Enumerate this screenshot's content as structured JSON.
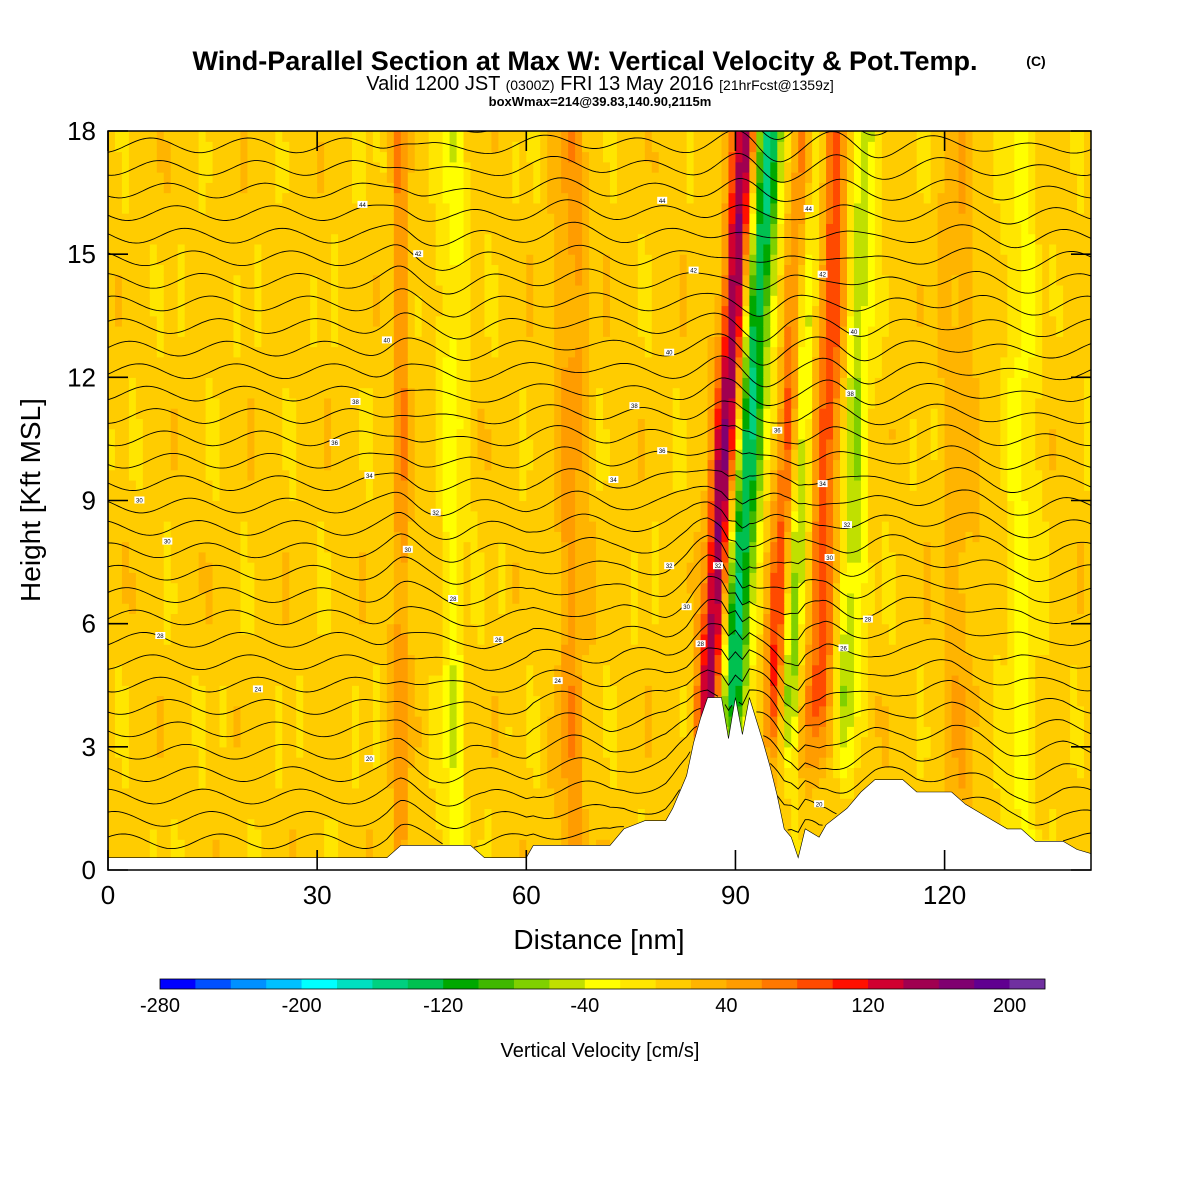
{
  "title": {
    "main": "Wind-Parallel Section at Max W: Vertical Velocity & Pot.Temp.",
    "main_mark": "(C)",
    "valid_prefix": "Valid 1200 JST",
    "valid_z": "(0300Z)",
    "valid_date": "FRI 13 May 2016",
    "valid_fcst": "[21hrFcst@1359z]",
    "box": "boxWmax=214@39.83,140.90,2115m"
  },
  "chart_data": {
    "type": "heatmap",
    "xlabel": "Distance [nm]",
    "ylabel": "Height [Kft MSL]",
    "xlim": [
      0,
      141
    ],
    "ylim": [
      0,
      18
    ],
    "x_ticks": [
      0,
      30,
      60,
      90,
      120
    ],
    "y_ticks": [
      0,
      3,
      6,
      9,
      12,
      15,
      18
    ],
    "x_tick_labels": [
      "0",
      "30",
      "60",
      "90",
      "120"
    ],
    "y_tick_labels": [
      "0",
      "3",
      "6",
      "9",
      "12",
      "15",
      "18"
    ],
    "colorbar": {
      "label": "Vertical Velocity [cm/s]",
      "min": -280,
      "max": 220,
      "step": 20,
      "tick_values": [
        -280,
        -200,
        -120,
        -40,
        40,
        120,
        200
      ],
      "tick_labels": [
        "-280",
        "-200",
        "-120",
        "-40",
        "40",
        "120",
        "200"
      ],
      "colors": [
        "#0000ff",
        "#0050ff",
        "#0090ff",
        "#00c0ff",
        "#00ffff",
        "#00e0c0",
        "#00d080",
        "#00c050",
        "#00a800",
        "#40b800",
        "#80d000",
        "#c0e000",
        "#ffff00",
        "#ffe600",
        "#ffcc00",
        "#ffb400",
        "#ff9c00",
        "#ff7800",
        "#ff4a00",
        "#ff1000",
        "#d00030",
        "#a00050",
        "#800070",
        "#600090",
        "#7030a0"
      ]
    },
    "terrain": [
      [
        0,
        0.3
      ],
      [
        40,
        0.3
      ],
      [
        42,
        0.6
      ],
      [
        52,
        0.6
      ],
      [
        54,
        0.3
      ],
      [
        60,
        0.3
      ],
      [
        61,
        0.6
      ],
      [
        72,
        0.6
      ],
      [
        74,
        1.0
      ],
      [
        77,
        1.2
      ],
      [
        80,
        1.2
      ],
      [
        81,
        1.5
      ],
      [
        83,
        2.3
      ],
      [
        84,
        3.1
      ],
      [
        85,
        3.7
      ],
      [
        86,
        4.2
      ],
      [
        88,
        4.2
      ],
      [
        89,
        3.2
      ],
      [
        90,
        4.2
      ],
      [
        91,
        3.3
      ],
      [
        92,
        4.2
      ],
      [
        94,
        3.1
      ],
      [
        95,
        2.5
      ],
      [
        96,
        1.8
      ],
      [
        97,
        1.0
      ],
      [
        98,
        0.8
      ],
      [
        99,
        0.3
      ],
      [
        100,
        1.0
      ],
      [
        102,
        0.8
      ],
      [
        103,
        1.1
      ],
      [
        106,
        1.5
      ],
      [
        108,
        1.9
      ],
      [
        110,
        2.2
      ],
      [
        114,
        2.2
      ],
      [
        116,
        1.9
      ],
      [
        121,
        1.9
      ],
      [
        123,
        1.6
      ],
      [
        126,
        1.3
      ],
      [
        129,
        1.0
      ],
      [
        131,
        1.0
      ],
      [
        133,
        0.7
      ],
      [
        137,
        0.7
      ],
      [
        139,
        0.5
      ],
      [
        141,
        0.4
      ]
    ],
    "w_features": [
      {
        "name": "updraft",
        "x0": 86.5,
        "slope": 0.38,
        "sigma": 1.3,
        "amp": 175
      },
      {
        "name": "downdraft",
        "x0": 89.5,
        "slope": 0.38,
        "sigma": 1.6,
        "amp": -155
      },
      {
        "name": "updraft",
        "x0": 96.0,
        "slope": 0.32,
        "sigma": 1.2,
        "amp": 135
      },
      {
        "name": "downdraft",
        "x0": 97.5,
        "slope": 0.25,
        "sigma": 1.2,
        "amp": -125
      },
      {
        "name": "updraft",
        "x0": 102.0,
        "slope": 0.2,
        "sigma": 1.5,
        "amp": 85
      },
      {
        "name": "downdraft",
        "x0": 106.0,
        "slope": 0.18,
        "sigma": 1.4,
        "amp": -65
      },
      {
        "name": "updraft",
        "x0": 42.0,
        "slope": 0.0,
        "sigma": 0.8,
        "amp": 50
      },
      {
        "name": "downdraft",
        "x0": 49.5,
        "slope": 0.0,
        "sigma": 1.2,
        "amp": -40
      },
      {
        "name": "updraft",
        "x0": 66.5,
        "slope": 0.0,
        "sigma": 1.5,
        "amp": 40
      },
      {
        "name": "updraft",
        "x0": 122.0,
        "slope": 0.0,
        "sigma": 1.8,
        "amp": 25
      },
      {
        "name": "downdraft",
        "x0": 131.0,
        "slope": 0.0,
        "sigma": 1.5,
        "amp": -35
      }
    ],
    "contour_labels": [
      {
        "x": 4.5,
        "y": 9.0,
        "text": "30"
      },
      {
        "x": 8.5,
        "y": 8.0,
        "text": "30"
      },
      {
        "x": 7.5,
        "y": 5.7,
        "text": "28"
      },
      {
        "x": 21.5,
        "y": 4.4,
        "text": "24"
      },
      {
        "x": 37.5,
        "y": 2.7,
        "text": "20"
      },
      {
        "x": 36.5,
        "y": 16.2,
        "text": "44"
      },
      {
        "x": 44.5,
        "y": 15.0,
        "text": "42"
      },
      {
        "x": 40.0,
        "y": 12.9,
        "text": "40"
      },
      {
        "x": 35.5,
        "y": 11.4,
        "text": "38"
      },
      {
        "x": 32.5,
        "y": 10.4,
        "text": "36"
      },
      {
        "x": 37.5,
        "y": 9.6,
        "text": "34"
      },
      {
        "x": 47.0,
        "y": 8.7,
        "text": "32"
      },
      {
        "x": 43.0,
        "y": 7.8,
        "text": "30"
      },
      {
        "x": 49.5,
        "y": 6.6,
        "text": "28"
      },
      {
        "x": 56.0,
        "y": 5.6,
        "text": "26"
      },
      {
        "x": 64.5,
        "y": 4.6,
        "text": "24"
      },
      {
        "x": 79.5,
        "y": 16.3,
        "text": "44"
      },
      {
        "x": 84.0,
        "y": 14.6,
        "text": "42"
      },
      {
        "x": 80.5,
        "y": 12.6,
        "text": "40"
      },
      {
        "x": 75.5,
        "y": 11.3,
        "text": "38"
      },
      {
        "x": 79.5,
        "y": 10.2,
        "text": "36"
      },
      {
        "x": 72.5,
        "y": 9.5,
        "text": "34"
      },
      {
        "x": 80.5,
        "y": 7.4,
        "text": "32"
      },
      {
        "x": 87.5,
        "y": 7.4,
        "text": "32"
      },
      {
        "x": 83.0,
        "y": 6.4,
        "text": "30"
      },
      {
        "x": 85.0,
        "y": 5.5,
        "text": "28"
      },
      {
        "x": 100.5,
        "y": 16.1,
        "text": "44"
      },
      {
        "x": 102.5,
        "y": 14.5,
        "text": "42"
      },
      {
        "x": 107.0,
        "y": 13.1,
        "text": "40"
      },
      {
        "x": 106.5,
        "y": 11.6,
        "text": "38"
      },
      {
        "x": 96.0,
        "y": 10.7,
        "text": "36"
      },
      {
        "x": 102.5,
        "y": 9.4,
        "text": "34"
      },
      {
        "x": 106.0,
        "y": 8.4,
        "text": "32"
      },
      {
        "x": 103.5,
        "y": 7.6,
        "text": "30"
      },
      {
        "x": 109.0,
        "y": 6.1,
        "text": "28"
      },
      {
        "x": 105.5,
        "y": 5.4,
        "text": "26"
      },
      {
        "x": 102.0,
        "y": 1.6,
        "text": "20"
      }
    ]
  }
}
